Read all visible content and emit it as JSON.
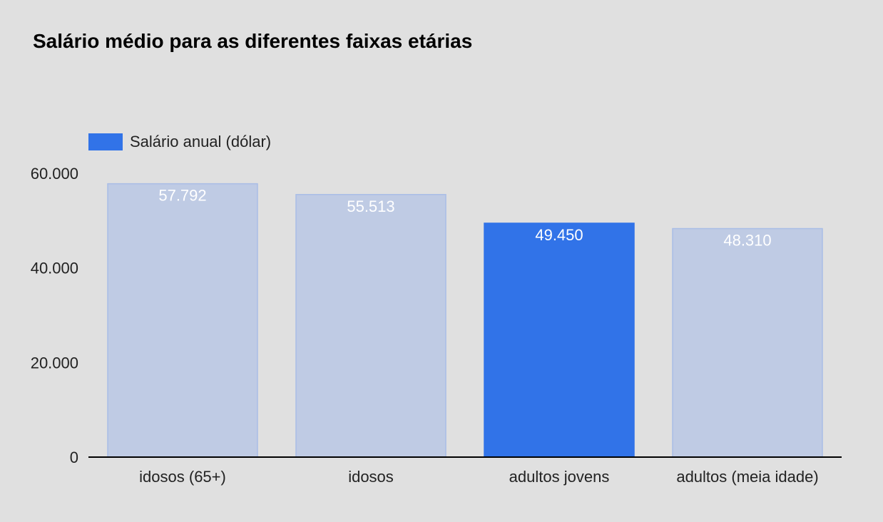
{
  "chart_data": {
    "type": "bar",
    "title": "Salário médio para as diferentes faixas etárias",
    "categories": [
      "idosos (65+)",
      "idosos",
      "adultos jovens",
      "adultos (meia idade)"
    ],
    "series": [
      {
        "name": "Salário anual (dólar)",
        "values": [
          57792,
          55513,
          49450,
          48310
        ],
        "data_labels": [
          "57.792",
          "55.513",
          "49.450",
          "48.310"
        ]
      }
    ],
    "highlighted_category": "adultos jovens",
    "ylim": [
      0,
      60000
    ],
    "yticks": [
      0,
      20000,
      40000,
      60000
    ],
    "ytick_labels": [
      "0",
      "20.000",
      "40.000",
      "60.000"
    ],
    "xlabel": "",
    "ylabel": "",
    "grid": false,
    "legend_position": "top-left",
    "colors": {
      "background": "#e0e0e0",
      "highlight": "#3173e8",
      "muted": "#bfcbe4",
      "muted_border": "#a9bde6",
      "axis": "#000000"
    }
  }
}
